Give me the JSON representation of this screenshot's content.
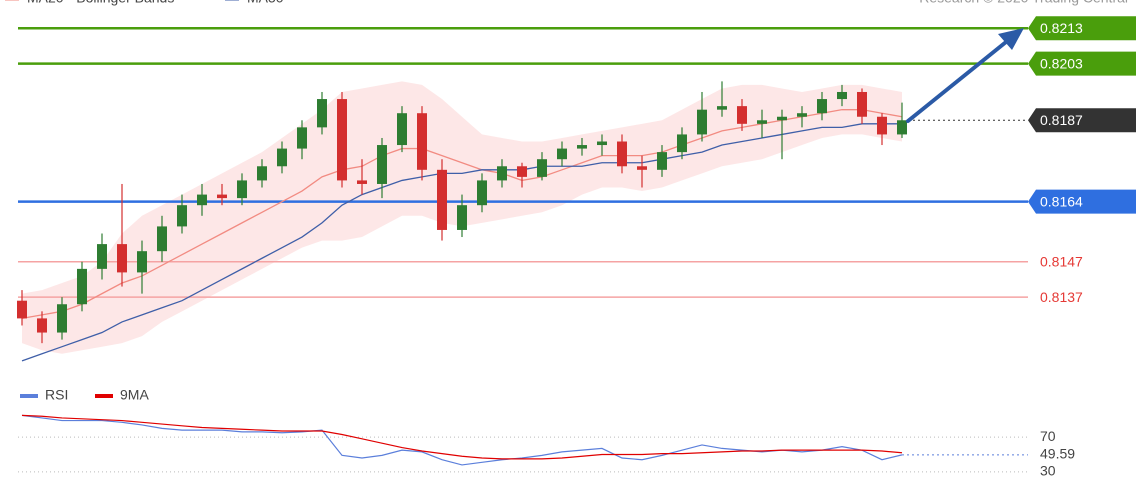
{
  "chart_data": [
    {
      "type": "candlestick",
      "source": "Research © 2020 Trading Central",
      "ylim": [
        0.8115,
        0.8221
      ],
      "up_color": "#2e7d32",
      "down_color": "#d32f2f",
      "open": [
        0.8136,
        0.8131,
        0.8127,
        0.8135,
        0.8145,
        0.8152,
        0.8144,
        0.815,
        0.8157,
        0.8163,
        0.8166,
        0.8165,
        0.817,
        0.8174,
        0.8179,
        0.8185,
        0.8193,
        0.817,
        0.8169,
        0.818,
        0.8189,
        0.8173,
        0.8156,
        0.8163,
        0.817,
        0.8174,
        0.8171,
        0.8176,
        0.8179,
        0.818,
        0.8181,
        0.8174,
        0.8173,
        0.8178,
        0.8183,
        0.819,
        0.8191,
        0.8186,
        0.8187,
        0.8188,
        0.8189,
        0.8193,
        0.8195,
        0.8188,
        0.8183
      ],
      "high": [
        0.8139,
        0.8133,
        0.8137,
        0.8147,
        0.8155,
        0.8169,
        0.8153,
        0.816,
        0.8166,
        0.8169,
        0.8169,
        0.8172,
        0.8176,
        0.8181,
        0.8187,
        0.8195,
        0.8195,
        0.8176,
        0.8182,
        0.8191,
        0.8191,
        0.8176,
        0.8166,
        0.8172,
        0.8176,
        0.8175,
        0.8178,
        0.8181,
        0.8182,
        0.8183,
        0.8183,
        0.8177,
        0.818,
        0.8185,
        0.8195,
        0.8198,
        0.8193,
        0.819,
        0.819,
        0.8191,
        0.8195,
        0.8197,
        0.8196,
        0.8189,
        0.8192
      ],
      "low": [
        0.8129,
        0.8124,
        0.8125,
        0.8133,
        0.8142,
        0.814,
        0.8138,
        0.8147,
        0.8155,
        0.816,
        0.8163,
        0.8163,
        0.8168,
        0.8172,
        0.8176,
        0.8183,
        0.8168,
        0.8166,
        0.8165,
        0.8178,
        0.817,
        0.8153,
        0.8154,
        0.8161,
        0.8168,
        0.8168,
        0.817,
        0.8174,
        0.8177,
        0.8177,
        0.8172,
        0.8168,
        0.8171,
        0.8176,
        0.8181,
        0.8188,
        0.8184,
        0.8182,
        0.8176,
        0.8185,
        0.8187,
        0.8191,
        0.8186,
        0.818,
        0.8182
      ],
      "close": [
        0.8131,
        0.8127,
        0.8135,
        0.8145,
        0.8152,
        0.8144,
        0.815,
        0.8157,
        0.8163,
        0.8166,
        0.8165,
        0.817,
        0.8174,
        0.8179,
        0.8185,
        0.8193,
        0.817,
        0.8169,
        0.818,
        0.8189,
        0.8173,
        0.8156,
        0.8163,
        0.817,
        0.8174,
        0.8171,
        0.8176,
        0.8179,
        0.818,
        0.8181,
        0.8174,
        0.8173,
        0.8178,
        0.8183,
        0.819,
        0.8191,
        0.8186,
        0.8187,
        0.8188,
        0.8189,
        0.8193,
        0.8195,
        0.8188,
        0.8183,
        0.8187
      ],
      "series": [
        {
          "name": "MA20 • Bollinger Bands",
          "color": "#f28b82",
          "band_color": "#fde3e3",
          "values": [
            0.8131,
            0.8132,
            0.8133,
            0.8135,
            0.8138,
            0.8141,
            0.8143,
            0.8146,
            0.8149,
            0.8152,
            0.8155,
            0.8158,
            0.8161,
            0.8164,
            0.8167,
            0.8171,
            0.8173,
            0.8174,
            0.8177,
            0.8179,
            0.8179,
            0.8177,
            0.8175,
            0.8173,
            0.8172,
            0.817,
            0.8171,
            0.8173,
            0.8175,
            0.8177,
            0.8177,
            0.8177,
            0.8178,
            0.818,
            0.8182,
            0.8184,
            0.8185,
            0.8186,
            0.8187,
            0.8188,
            0.8189,
            0.819,
            0.819,
            0.8189,
            0.8188
          ],
          "upper": [
            0.8138,
            0.8139,
            0.8141,
            0.8143,
            0.8147,
            0.8155,
            0.816,
            0.8163,
            0.8166,
            0.8169,
            0.8172,
            0.8175,
            0.8178,
            0.8182,
            0.8186,
            0.819,
            0.8195,
            0.8196,
            0.8197,
            0.8198,
            0.8197,
            0.8193,
            0.8188,
            0.8183,
            0.8182,
            0.8181,
            0.8181,
            0.8182,
            0.8183,
            0.8184,
            0.8185,
            0.8186,
            0.8187,
            0.819,
            0.8193,
            0.8196,
            0.8197,
            0.8197,
            0.8196,
            0.8195,
            0.8196,
            0.8197,
            0.8197,
            0.8196,
            0.8195
          ],
          "lower": [
            0.8124,
            0.8122,
            0.8121,
            0.8122,
            0.8123,
            0.8124,
            0.8126,
            0.813,
            0.8133,
            0.8136,
            0.8139,
            0.8142,
            0.8145,
            0.8148,
            0.8151,
            0.8153,
            0.8153,
            0.8154,
            0.8157,
            0.816,
            0.816,
            0.8158,
            0.8157,
            0.8158,
            0.8159,
            0.816,
            0.8161,
            0.8163,
            0.8166,
            0.8168,
            0.8168,
            0.8167,
            0.8168,
            0.817,
            0.8172,
            0.8174,
            0.8175,
            0.8176,
            0.8178,
            0.818,
            0.8182,
            0.8183,
            0.8183,
            0.8182,
            0.8181
          ]
        },
        {
          "name": "MA50",
          "color": "#3f5fa8",
          "values": [
            0.8119,
            0.8121,
            0.8123,
            0.8125,
            0.8127,
            0.813,
            0.8132,
            0.8134,
            0.8136,
            0.8139,
            0.8142,
            0.8145,
            0.8148,
            0.8151,
            0.8154,
            0.8158,
            0.8163,
            0.8166,
            0.8168,
            0.817,
            0.8171,
            0.8172,
            0.8172,
            0.8173,
            0.8173,
            0.8173,
            0.8174,
            0.8174,
            0.8174,
            0.8175,
            0.8175,
            0.8175,
            0.8176,
            0.8177,
            0.8178,
            0.818,
            0.8181,
            0.8182,
            0.8183,
            0.8184,
            0.8185,
            0.8185,
            0.8186,
            0.8186,
            0.8186
          ]
        }
      ],
      "levels": [
        {
          "value": 0.8213,
          "color": "#4a9e0c",
          "style": "box"
        },
        {
          "value": 0.8203,
          "color": "#4a9e0c",
          "style": "box"
        },
        {
          "value": 0.8187,
          "color": "#333333",
          "style": "current"
        },
        {
          "value": 0.8164,
          "color": "#2f6fe0",
          "style": "box"
        },
        {
          "value": 0.8147,
          "color": "#e53935",
          "style": "text"
        },
        {
          "value": 0.8137,
          "color": "#e53935",
          "style": "text"
        }
      ]
    },
    {
      "type": "line",
      "ylim": [
        0,
        100
      ],
      "yticks": [
        30,
        70
      ],
      "series": [
        {
          "name": "RSI",
          "color": "#5b7fdb",
          "values": [
            95,
            92,
            89,
            89,
            89,
            87,
            84,
            80,
            78,
            78,
            78,
            76,
            76,
            75,
            76,
            78,
            49,
            46,
            49,
            55,
            53,
            44,
            38,
            41,
            44,
            46,
            49,
            53,
            55,
            57,
            46,
            44,
            49,
            55,
            61,
            57,
            55,
            53,
            55,
            53,
            55,
            59,
            55,
            44,
            49.59
          ]
        },
        {
          "name": "9MA",
          "color": "#e00000",
          "values": [
            95,
            94,
            92,
            91,
            90,
            89,
            87,
            85,
            83,
            81,
            80,
            79,
            78,
            77,
            77,
            77,
            73,
            68,
            63,
            58,
            54,
            51,
            48,
            46,
            45,
            45,
            45,
            46,
            48,
            50,
            50,
            50,
            51,
            51,
            52,
            53,
            54,
            54,
            55,
            55,
            55,
            55,
            55,
            54,
            52
          ]
        }
      ]
    }
  ]
}
